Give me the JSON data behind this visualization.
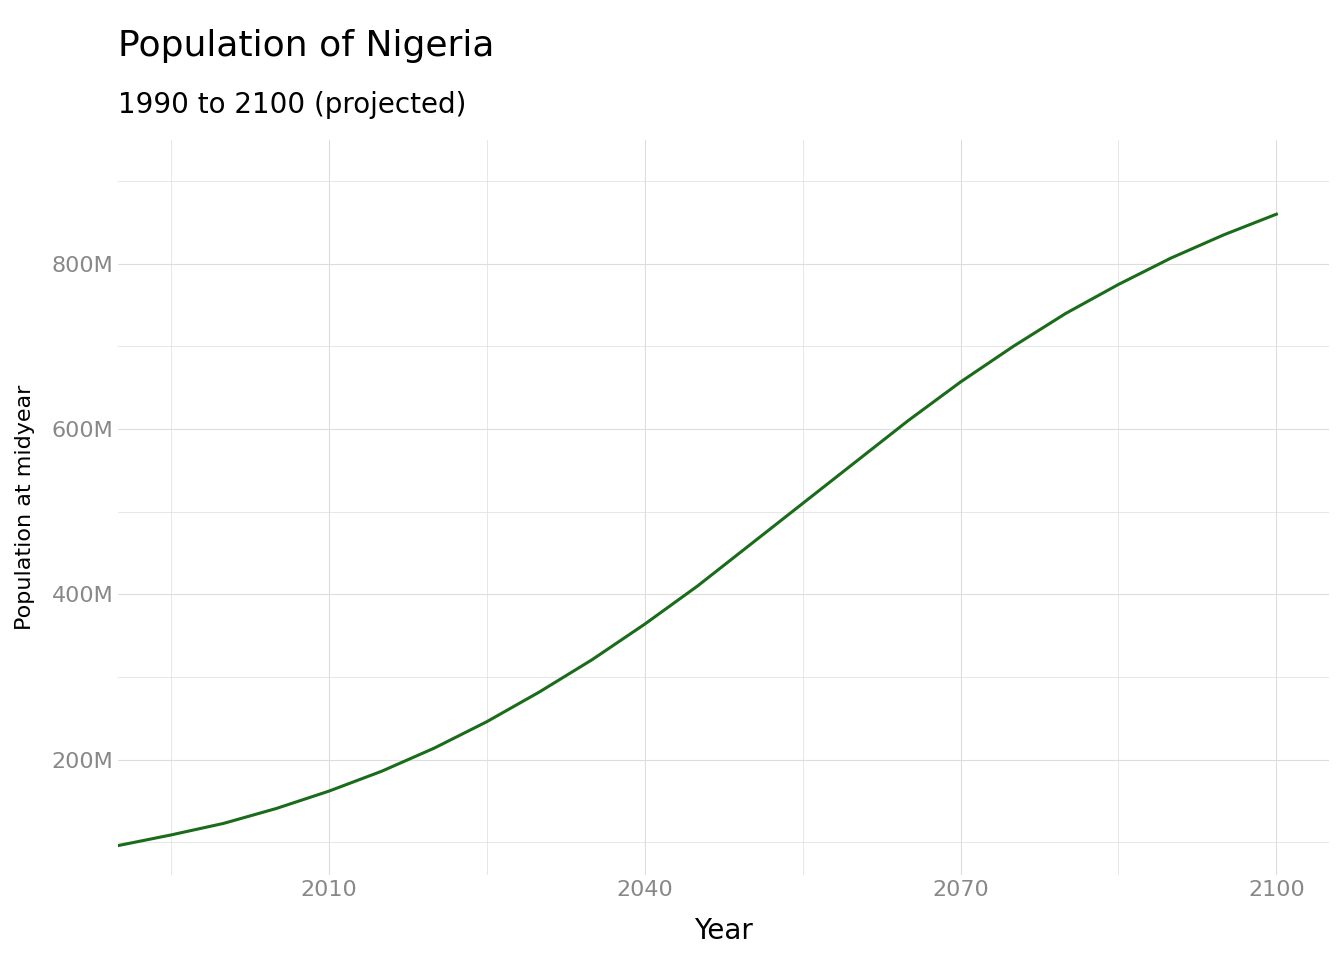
{
  "title": "Population of Nigeria",
  "subtitle": "1990 to 2100 (projected)",
  "xlabel": "Year",
  "ylabel": "Population at midyear",
  "line_color": "#1a6b1a",
  "line_width": 2.2,
  "background_color": "#ffffff",
  "panel_background": "#ffffff",
  "grid_color": "#dddddd",
  "tick_color": "#888888",
  "x_ticks": [
    2010,
    2040,
    2070,
    2100
  ],
  "y_ticks": [
    200000000,
    400000000,
    600000000,
    800000000
  ],
  "y_tick_labels": [
    "200M",
    "400M",
    "600M",
    "800M"
  ],
  "xlim": [
    1990,
    2105
  ],
  "ylim": [
    60000000,
    950000000
  ],
  "years": [
    1990,
    1995,
    2000,
    2005,
    2010,
    2015,
    2020,
    2025,
    2030,
    2035,
    2040,
    2045,
    2050,
    2055,
    2060,
    2065,
    2070,
    2075,
    2080,
    2085,
    2090,
    2095,
    2100
  ],
  "population": [
    96200000,
    109000000,
    123000000,
    141000000,
    162000000,
    186000000,
    214000000,
    246000000,
    282000000,
    321000000,
    364000000,
    410000000,
    460000000,
    510000000,
    560000000,
    610000000,
    657000000,
    700000000,
    740000000,
    775000000,
    807000000,
    835000000,
    860000000
  ],
  "title_fontsize": 26,
  "subtitle_fontsize": 20,
  "xlabel_fontsize": 20,
  "ylabel_fontsize": 16,
  "tick_fontsize": 16
}
